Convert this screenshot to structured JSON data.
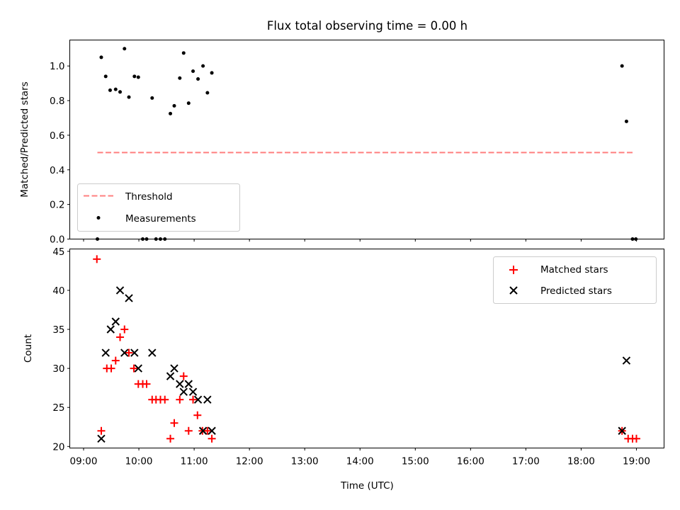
{
  "chart_data": {
    "type": "scatter",
    "title": "Flux total observing time = 0.00 h",
    "xlabel": "Time (UTC)",
    "x_ticks": [
      9,
      10,
      11,
      12,
      13,
      14,
      15,
      16,
      17,
      18,
      19
    ],
    "x_tick_labels": [
      "09:00",
      "10:00",
      "11:00",
      "12:00",
      "13:00",
      "14:00",
      "15:00",
      "16:00",
      "17:00",
      "18:00",
      "19:00"
    ],
    "xlim": [
      8.75,
      19.5
    ],
    "top": {
      "ylabel": "Matched/Predicted stars",
      "ylim": [
        0,
        1.15
      ],
      "y_ticks": [
        0.0,
        0.2,
        0.4,
        0.6,
        0.8,
        1.0
      ],
      "y_tick_labels": [
        "0.0",
        "0.2",
        "0.4",
        "0.6",
        "0.8",
        "1.0"
      ],
      "threshold": {
        "name": "Threshold",
        "value": 0.5,
        "x_range": [
          9.25,
          18.95
        ],
        "color": "#ff7f7f"
      },
      "measurements": {
        "name": "Measurements",
        "color": "#000000",
        "points": [
          [
            9.25,
            0.0
          ],
          [
            9.32,
            1.05
          ],
          [
            9.4,
            0.94
          ],
          [
            9.48,
            0.86
          ],
          [
            9.58,
            0.865
          ],
          [
            9.66,
            0.85
          ],
          [
            9.74,
            1.1
          ],
          [
            9.82,
            0.82
          ],
          [
            9.92,
            0.94
          ],
          [
            9.99,
            0.935
          ],
          [
            10.07,
            0.0
          ],
          [
            10.14,
            0.0
          ],
          [
            10.24,
            0.815
          ],
          [
            10.31,
            0.0
          ],
          [
            10.39,
            0.0
          ],
          [
            10.47,
            0.0
          ],
          [
            10.57,
            0.725
          ],
          [
            10.64,
            0.77
          ],
          [
            10.74,
            0.93
          ],
          [
            10.81,
            1.075
          ],
          [
            10.9,
            0.785
          ],
          [
            10.98,
            0.97
          ],
          [
            11.07,
            0.925
          ],
          [
            11.16,
            1.0
          ],
          [
            11.24,
            0.845
          ],
          [
            11.32,
            0.96
          ],
          [
            18.74,
            1.0
          ],
          [
            18.82,
            0.68
          ],
          [
            18.93,
            0.0
          ],
          [
            18.99,
            0.0
          ]
        ]
      },
      "legend": {
        "location": "lower-left",
        "items": [
          "Threshold",
          "Measurements"
        ]
      }
    },
    "bottom": {
      "ylabel": "Count",
      "ylim": [
        19.8,
        45.3
      ],
      "y_ticks": [
        20,
        25,
        30,
        35,
        40,
        45
      ],
      "y_tick_labels": [
        "20",
        "25",
        "30",
        "35",
        "40",
        "45"
      ],
      "series": [
        {
          "name": "Matched stars",
          "marker": "plus",
          "color": "#ff0000",
          "points": [
            [
              9.24,
              44
            ],
            [
              9.32,
              22
            ],
            [
              9.42,
              30
            ],
            [
              9.5,
              30
            ],
            [
              9.58,
              31
            ],
            [
              9.66,
              34
            ],
            [
              9.74,
              35
            ],
            [
              9.82,
              32
            ],
            [
              9.91,
              30
            ],
            [
              9.99,
              28
            ],
            [
              10.07,
              28
            ],
            [
              10.14,
              28
            ],
            [
              10.24,
              26
            ],
            [
              10.31,
              26
            ],
            [
              10.39,
              26
            ],
            [
              10.47,
              26
            ],
            [
              10.57,
              21
            ],
            [
              10.64,
              23
            ],
            [
              10.74,
              26
            ],
            [
              10.81,
              29
            ],
            [
              10.9,
              22
            ],
            [
              10.98,
              26
            ],
            [
              11.06,
              24
            ],
            [
              11.15,
              22
            ],
            [
              11.24,
              22
            ],
            [
              11.32,
              21
            ],
            [
              18.74,
              22
            ],
            [
              18.85,
              21
            ],
            [
              18.93,
              21
            ],
            [
              19.0,
              21
            ]
          ]
        },
        {
          "name": "Predicted stars",
          "marker": "x",
          "color": "#000000",
          "points": [
            [
              9.32,
              21
            ],
            [
              9.4,
              32
            ],
            [
              9.49,
              35
            ],
            [
              9.58,
              36
            ],
            [
              9.66,
              40
            ],
            [
              9.74,
              32
            ],
            [
              9.82,
              39
            ],
            [
              9.92,
              32
            ],
            [
              9.99,
              30
            ],
            [
              10.24,
              32
            ],
            [
              10.57,
              29
            ],
            [
              10.64,
              30
            ],
            [
              10.74,
              28
            ],
            [
              10.81,
              27
            ],
            [
              10.9,
              28
            ],
            [
              10.98,
              27
            ],
            [
              11.07,
              26
            ],
            [
              11.16,
              22
            ],
            [
              11.24,
              26
            ],
            [
              11.32,
              22
            ],
            [
              18.74,
              22
            ],
            [
              18.82,
              31
            ]
          ]
        }
      ],
      "legend": {
        "location": "upper-right",
        "items": [
          "Matched stars",
          "Predicted stars"
        ]
      }
    }
  }
}
